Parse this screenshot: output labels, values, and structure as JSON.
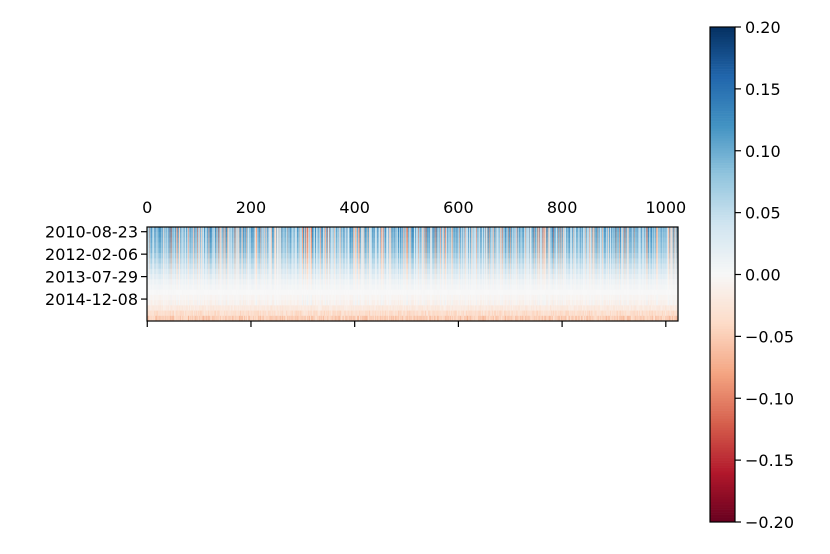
{
  "chart_data": {
    "type": "heatmap",
    "title": "",
    "xlabel": "",
    "ylabel": "",
    "x_range": [
      0,
      1023
    ],
    "x_ticks": [
      0,
      200,
      400,
      600,
      800,
      1000
    ],
    "y_tick_labels": [
      "2010-08-23",
      "2012-02-06",
      "2013-07-29",
      "2014-12-08"
    ],
    "n_columns": 1024,
    "n_rows": 18,
    "colormap": "RdBu",
    "color_range": [
      -0.2,
      0.2
    ],
    "colorbar_ticks": [
      "0.20",
      "0.15",
      "0.10",
      "0.05",
      "0.00",
      "−0.05",
      "−0.10",
      "−0.15",
      "−0.20"
    ],
    "row_profile": [
      0.09,
      0.085,
      0.08,
      0.075,
      0.07,
      0.06,
      0.05,
      0.04,
      0.03,
      0.02,
      0.01,
      0.005,
      0.0,
      -0.005,
      -0.01,
      -0.02,
      -0.035,
      -0.05
    ]
  }
}
